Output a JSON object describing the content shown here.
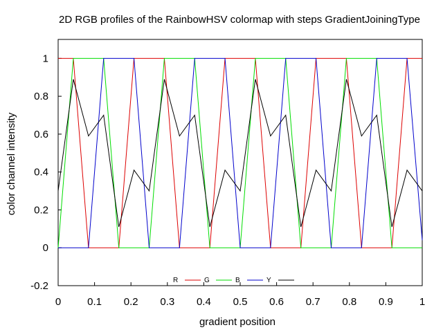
{
  "chart_data": {
    "type": "line",
    "title": "2D RGB profiles of the RainbowHSV colormap with steps GradientJoiningType",
    "xlabel": "gradient position",
    "ylabel": "color channel intensity",
    "xlim": [
      0,
      1
    ],
    "ylim": [
      -0.2,
      1.1
    ],
    "xticks": [
      "0",
      "0.1",
      "0.2",
      "0.3",
      "0.4",
      "0.5",
      "0.6",
      "0.7",
      "0.8",
      "0.9",
      "1"
    ],
    "yticks": [
      "-0.2",
      "0",
      "0.2",
      "0.4",
      "0.6",
      "0.8",
      "1"
    ],
    "grid": false,
    "legend_position": "bottom-center",
    "series": [
      {
        "name": "R",
        "color": "#dd0000",
        "x": [
          0,
          0.0417,
          0.0833,
          0.125,
          0.1667,
          0.2083,
          0.25,
          0.2917,
          0.3333,
          0.375,
          0.4167,
          0.4583,
          0.5,
          0.5417,
          0.5833,
          0.625,
          0.6667,
          0.7083,
          0.75,
          0.7917,
          0.8333,
          0.875,
          0.9167,
          0.9583,
          1
        ],
        "values": [
          1,
          1,
          0,
          0,
          0,
          1,
          1,
          1,
          0,
          0,
          0,
          1,
          1,
          1,
          0,
          0,
          0,
          1,
          1,
          1,
          0,
          0,
          0,
          1,
          1
        ]
      },
      {
        "name": "G",
        "color": "#00dd00",
        "x": [
          0,
          0.0417,
          0.0833,
          0.125,
          0.1667,
          0.2083,
          0.25,
          0.2917,
          0.3333,
          0.375,
          0.4167,
          0.4583,
          0.5,
          0.5417,
          0.5833,
          0.625,
          0.6667,
          0.7083,
          0.75,
          0.7917,
          0.8333,
          0.875,
          0.9167,
          0.9583,
          1
        ],
        "values": [
          0,
          1,
          1,
          1,
          0,
          0,
          0,
          1,
          1,
          1,
          0,
          0,
          0,
          1,
          1,
          1,
          0,
          0,
          0,
          1,
          1,
          1,
          0,
          0,
          0
        ]
      },
      {
        "name": "B",
        "color": "#0000cc",
        "x": [
          0,
          0.0417,
          0.0833,
          0.125,
          0.1667,
          0.2083,
          0.25,
          0.2917,
          0.3333,
          0.375,
          0.4167,
          0.4583,
          0.5,
          0.5417,
          0.5833,
          0.625,
          0.6667,
          0.7083,
          0.75,
          0.7917,
          0.8333,
          0.875,
          0.9167,
          0.9583,
          1
        ],
        "values": [
          0,
          0,
          0,
          1,
          1,
          1,
          0,
          0,
          0,
          1,
          1,
          1,
          0,
          0,
          0,
          1,
          1,
          1,
          0,
          0,
          0,
          1,
          1,
          1,
          0.04
        ]
      },
      {
        "name": "Y",
        "color": "#000000",
        "x": [
          0,
          0.0417,
          0.0833,
          0.125,
          0.1667,
          0.2083,
          0.25,
          0.2917,
          0.3333,
          0.375,
          0.4167,
          0.4583,
          0.5,
          0.5417,
          0.5833,
          0.625,
          0.6667,
          0.7083,
          0.75,
          0.7917,
          0.8333,
          0.875,
          0.9167,
          0.9583,
          1
        ],
        "values": [
          0.3,
          0.89,
          0.59,
          0.7,
          0.11,
          0.41,
          0.3,
          0.89,
          0.59,
          0.7,
          0.11,
          0.41,
          0.3,
          0.89,
          0.59,
          0.7,
          0.11,
          0.41,
          0.3,
          0.89,
          0.59,
          0.7,
          0.11,
          0.41,
          0.3
        ]
      }
    ]
  }
}
